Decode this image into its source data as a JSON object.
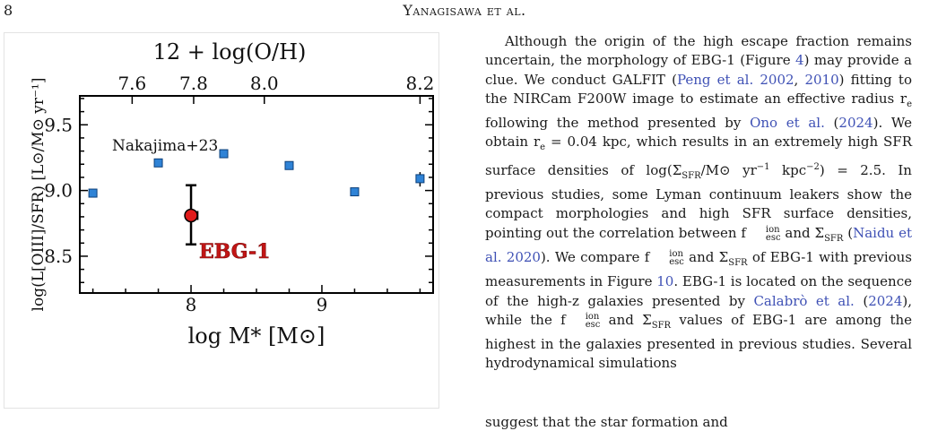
{
  "page": {
    "number": "8",
    "running_head": "Yanagisawa et al."
  },
  "figure": {
    "top_axis_label": "12 + log(O/H)",
    "top_ticks": [
      "7.6",
      "7.8",
      "8.0",
      "8.2"
    ],
    "xlabel": "log M* [M⊙]",
    "ylabel": "log(L[OIII]/SFR) [L⊙/M⊙ yr⁻¹]",
    "annotation": "Nakajima+23",
    "highlight_label": "EBG-1",
    "colors": {
      "reference": "#2f83d6",
      "highlight": "#e01b1b",
      "highlight_text": "#c31515"
    }
  },
  "chart_data": {
    "type": "scatter",
    "xlim": [
      7.15,
      9.85
    ],
    "ylim": [
      8.22,
      9.72
    ],
    "x_ticks": [
      8,
      9
    ],
    "y_ticks": [
      "8.5",
      "9.0",
      "9.5"
    ],
    "top_axis": {
      "ticks": [
        7.6,
        7.8,
        8.0,
        8.2
      ],
      "tick_x_positions": [
        7.55,
        8.02,
        8.56,
        9.75
      ]
    },
    "series": [
      {
        "name": "Nakajima+23",
        "x": [
          7.25,
          7.75,
          8.25,
          8.75,
          9.25,
          9.75
        ],
        "y": [
          8.98,
          9.21,
          9.28,
          9.19,
          8.99,
          9.09
        ],
        "yerr_high": [
          0,
          0,
          0,
          0,
          0,
          0.05
        ],
        "yerr_low": [
          0,
          0,
          0,
          0,
          0,
          0.06
        ]
      },
      {
        "name": "EBG-1",
        "x": [
          8.0
        ],
        "y": [
          8.81
        ],
        "yerr_high": [
          0.23
        ],
        "yerr_low": [
          0.22
        ],
        "xerr": [
          0.05
        ]
      }
    ]
  },
  "text": {
    "p1_segments": [
      "Although the origin of the high escape fraction remains uncertain, the morphology of EBG-1 (Figure ",
      "4",
      ") may provide a clue. We conduct GALFIT (",
      "Peng et al. 2002",
      ", ",
      "2010",
      ") fitting to the NIRCam F200W image to estimate an effective radius r",
      "e",
      " following the method presented by ",
      "Ono et al.",
      " (",
      "2024",
      "). We obtain r",
      "e",
      " = 0.04 kpc, which results in an extremely high SFR surface densities of log(Σ",
      "SFR",
      "/M⊙ yr",
      "−1",
      " kpc",
      "−2",
      ") = 2.5. In previous studies, some Lyman continuum leakers show the compact morphologies and high SFR surface densities, pointing out the correlation between f",
      "ion",
      "esc",
      " and Σ",
      "SFR",
      " (",
      "Naidu et al. 2020",
      "). We compare f",
      "ion",
      "esc",
      " and Σ",
      "SFR",
      " of EBG-1 with previous measurements in Figure ",
      "10",
      ". EBG-1 is located on the sequence of the high-z galaxies presented by ",
      "Calabrò et al.",
      " (",
      "2024",
      "), while the f",
      "ion",
      "esc",
      " and Σ",
      "SFR",
      " values of EBG-1 are among the highest in the galaxies presented in previous studies. Several hydrodynamical simulations"
    ],
    "tail_line": "suggest that the star formation and"
  }
}
